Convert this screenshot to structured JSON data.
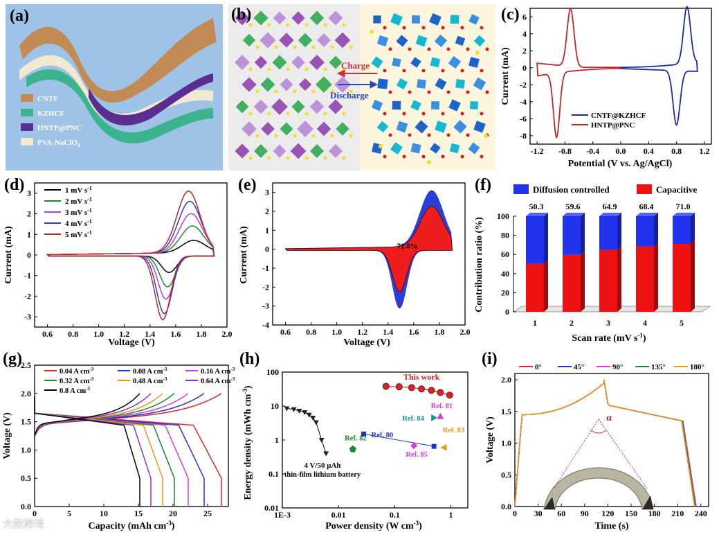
{
  "panels": {
    "a": {
      "label": "(a)",
      "layers": [
        "CNTF",
        "KZHCF",
        "HNTP@PNC",
        "PVA-NaClO",
        "4"
      ],
      "colors": {
        "bg": "#9ec3e6",
        "cntf": "#c28a55",
        "kzhcf": "#3bb48e",
        "hntp": "#5a2d91",
        "pva": "#f1ead0"
      }
    },
    "b": {
      "label": "(b)",
      "charge_label": "Charge",
      "discharge_label": "Discharge",
      "colors": {
        "charge": "#d12f2f",
        "discharge": "#2a44b8"
      }
    },
    "c": {
      "label": "(c)",
      "xlabel": "Potential (V vs. Ag/AgCl)",
      "ylabel": "Current (mA)",
      "xticks": [
        "-1.2",
        "-0.8",
        "-0.4",
        "0.0",
        "0.4",
        "0.8",
        "1.2"
      ],
      "yticks": [
        "-8",
        "-6",
        "-4",
        "-2",
        "0",
        "2",
        "4",
        "6"
      ],
      "legend": [
        "CNTF@KZHCF",
        "HNTP@PNC"
      ],
      "colors": [
        "#1f2a9e",
        "#c0262a"
      ]
    },
    "d": {
      "label": "(d)",
      "xlabel": "Voltage (V)",
      "ylabel": "Current (mA)",
      "xticks": [
        "0.6",
        "0.8",
        "1.0",
        "1.2",
        "1.4",
        "1.6",
        "1.8",
        "2.0"
      ],
      "yticks": [
        "-3",
        "-2",
        "-1",
        "0",
        "1",
        "2",
        "3"
      ],
      "legend": [
        "1 mV s",
        "2 mV s",
        "3 mV s",
        "4 mV s",
        "5 mV s"
      ],
      "legend_sup": "-1",
      "colors": [
        "#000000",
        "#1a8a2a",
        "#c23bd3",
        "#2e3fbf",
        "#c0262a"
      ]
    },
    "e": {
      "label": "(e)",
      "xlabel": "Voltage (V)",
      "ylabel": "Current (mA)",
      "xticks": [
        "0.6",
        "0.8",
        "1.0",
        "1.2",
        "1.4",
        "1.6",
        "1.8",
        "2.0"
      ],
      "yticks": [
        "-4",
        "-3",
        "-2",
        "-1",
        "0",
        "1",
        "2",
        "3"
      ],
      "annotation": "71.0%",
      "colors": {
        "total": "#2b3fd4",
        "capacitive": "#ee1c1c"
      }
    },
    "f": {
      "label": "(f)",
      "xlabel": "Scan rate (mV s",
      "xlabel_sup": "-1",
      "xlabel_end": ")",
      "ylabel": "Contribution ratio (%)",
      "legend": [
        "Diffusion controlled",
        "Capacitive"
      ],
      "yticks": [
        "0",
        "20",
        "40",
        "60",
        "80",
        "100"
      ],
      "colors": {
        "diffusion": "#2233ee",
        "capacitive": "#ee1111"
      }
    },
    "g": {
      "label": "(g)",
      "xlabel": "Capacity (mAh cm",
      "xlabel_sup": "-3",
      "xlabel_end": ")",
      "ylabel": "Voltage (V)",
      "xticks": [
        "0",
        "5",
        "10",
        "15",
        "20",
        "25"
      ],
      "yticks": [
        "0.0",
        "0.5",
        "1.0",
        "1.5",
        "2.0",
        "2.5"
      ],
      "legend": [
        "0.04 A cm",
        "0.08 A cm",
        "0.16 A cm",
        "0.32 A cm",
        "0.48 A cm",
        "0.64 A cm",
        "0.8 A cm"
      ],
      "legend_sup": "-3",
      "colors": [
        "#d7262b",
        "#2233c4",
        "#d23bd8",
        "#1a8a2a",
        "#f0941f",
        "#8a32c8",
        "#000000"
      ],
      "capacities": [
        27,
        24.5,
        22.2,
        20.2,
        18.5,
        16.8,
        15.2
      ]
    },
    "h": {
      "label": "(h)",
      "xlabel": "Power density (W cm",
      "xlabel_sup": "-3",
      "xlabel_end": ")",
      "ylabel": "Energy density (mWh cm",
      "ylabel_sup": "-3",
      "ylabel_end": ")",
      "xticks": [
        "1E-3",
        "0.01",
        "0.1",
        "1"
      ],
      "yticks": [
        "0.01",
        "0.1",
        "1",
        "10",
        "100"
      ],
      "this_work": "This work",
      "battery_line1": "4 V/50 μAh",
      "battery_line2": "thin-film lithium battery",
      "refs": [
        "Ref. 80",
        "Ref. 81",
        "Ref. 82",
        "Ref. 83",
        "Ref. 84",
        "Ref. 85"
      ]
    },
    "i": {
      "label": "(i)",
      "xlabel": "Time (s)",
      "ylabel": "Voltage (V)",
      "xticks": [
        "0",
        "30",
        "60",
        "90",
        "120",
        "150",
        "180",
        "210",
        "240"
      ],
      "yticks": [
        "0.0",
        "0.5",
        "1.0",
        "1.5",
        "2.0"
      ],
      "legend": [
        "0°",
        "45°",
        "90°",
        "135°",
        "180°"
      ],
      "colors": [
        "#d7262b",
        "#2233c4",
        "#d23bd8",
        "#1a8a2a",
        "#f0941f"
      ],
      "angle_label": "α"
    }
  },
  "chart_data": [
    {
      "panel": "c",
      "type": "line",
      "title": "",
      "xlabel": "Potential (V vs. Ag/AgCl)",
      "ylabel": "Current (mA)",
      "xlim": [
        -1.3,
        1.3
      ],
      "ylim": [
        -9,
        7
      ],
      "series": [
        {
          "name": "CNTF@KZHCF",
          "peaks": {
            "anodic": {
              "x": 0.95,
              "y": 6.7
            },
            "cathodic": {
              "x": 0.8,
              "y": -6.4
            }
          },
          "range": [
            0.0,
            1.1
          ]
        },
        {
          "name": "HNTP@PNC",
          "peaks": {
            "anodic": {
              "x": -0.72,
              "y": 6.8
            },
            "cathodic": {
              "x": -0.92,
              "y": -7.6
            }
          },
          "range": [
            -1.2,
            0.0
          ]
        }
      ]
    },
    {
      "panel": "d",
      "type": "line",
      "xlabel": "Voltage (V)",
      "ylabel": "Current (mA)",
      "xlim": [
        0.5,
        2.0
      ],
      "ylim": [
        -3.5,
        3.5
      ],
      "series": [
        {
          "name": "1 mV s-1",
          "anodic_peak": 0.6,
          "cathodic_peak": -0.8
        },
        {
          "name": "2 mV s-1",
          "anodic_peak": 1.3,
          "cathodic_peak": -1.5
        },
        {
          "name": "3 mV s-1",
          "anodic_peak": 1.9,
          "cathodic_peak": -2.1
        },
        {
          "name": "4 mV s-1",
          "anodic_peak": 2.5,
          "cathodic_peak": -2.8
        },
        {
          "name": "5 mV s-1",
          "anodic_peak": 3.0,
          "cathodic_peak": -3.1
        }
      ]
    },
    {
      "panel": "e",
      "type": "area",
      "xlabel": "Voltage (V)",
      "ylabel": "Current (mA)",
      "xlim": [
        0.5,
        2.0
      ],
      "ylim": [
        -4,
        3.5
      ],
      "capacitive_fraction": "71.0%"
    },
    {
      "panel": "f",
      "type": "bar",
      "categories": [
        "1",
        "2",
        "3",
        "4",
        "5"
      ],
      "series": [
        {
          "name": "Capacitive",
          "values": [
            50.3,
            59.6,
            64.9,
            68.4,
            71.0
          ]
        },
        {
          "name": "Diffusion controlled",
          "values": [
            49.7,
            40.4,
            35.1,
            31.6,
            29.0
          ]
        }
      ],
      "data_labels": [
        "50.3",
        "59.6",
        "64.9",
        "68.4",
        "71.0"
      ],
      "xlabel": "Scan rate (mV s-1)",
      "ylabel": "Contribution ratio (%)",
      "ylim": [
        0,
        100
      ]
    },
    {
      "panel": "g",
      "type": "line",
      "xlabel": "Capacity (mAh cm-3)",
      "ylabel": "Voltage (V)",
      "xlim": [
        0,
        28
      ],
      "ylim": [
        0,
        2.5
      ],
      "series": [
        {
          "name": "0.04 A cm-3",
          "capacity": 27.0
        },
        {
          "name": "0.08 A cm-3",
          "capacity": 24.5
        },
        {
          "name": "0.16 A cm-3",
          "capacity": 22.2
        },
        {
          "name": "0.32 A cm-3",
          "capacity": 20.2
        },
        {
          "name": "0.48 A cm-3",
          "capacity": 18.5
        },
        {
          "name": "0.64 A cm-3",
          "capacity": 16.8
        },
        {
          "name": "0.8 A cm-3",
          "capacity": 15.2
        }
      ]
    },
    {
      "panel": "h",
      "type": "scatter",
      "xlabel": "Power density (W cm-3)",
      "ylabel": "Energy density (mWh cm-3)",
      "xscale": "log",
      "yscale": "log",
      "xlim": [
        0.001,
        2
      ],
      "ylim": [
        0.01,
        100
      ],
      "series": [
        {
          "name": "This work",
          "x": [
            0.07,
            0.12,
            0.2,
            0.3,
            0.45,
            0.65,
            0.95
          ],
          "y": [
            38,
            37,
            35,
            32,
            29,
            25,
            21
          ]
        },
        {
          "name": "4 V/50 μAh thin-film lithium battery",
          "x": [
            0.0012,
            0.0016,
            0.002,
            0.0025,
            0.003,
            0.0035,
            0.004,
            0.005,
            0.006
          ],
          "y": [
            8.5,
            8,
            7.2,
            6.5,
            5.5,
            4.5,
            3.3,
            1.0,
            0.4
          ]
        },
        {
          "name": "Ref. 80",
          "x": [
            0.028,
            0.5
          ],
          "y": [
            1.5,
            0.65
          ]
        },
        {
          "name": "Ref. 81",
          "x": [
            0.65
          ],
          "y": [
            5.0
          ]
        },
        {
          "name": "Ref. 82",
          "x": [
            0.018
          ],
          "y": [
            0.55
          ]
        },
        {
          "name": "Ref. 83",
          "x": [
            0.75
          ],
          "y": [
            0.6
          ]
        },
        {
          "name": "Ref. 84",
          "x": [
            0.5
          ],
          "y": [
            4.5
          ]
        },
        {
          "name": "Ref. 85",
          "x": [
            0.22
          ],
          "y": [
            0.68
          ]
        }
      ]
    },
    {
      "panel": "i",
      "type": "line",
      "xlabel": "Time (s)",
      "ylabel": "Voltage (V)",
      "xlim": [
        0,
        250
      ],
      "ylim": [
        0,
        2.1
      ],
      "series": [
        {
          "name": "0°",
          "charge_end": 115,
          "discharge_end": 232
        },
        {
          "name": "45°",
          "charge_end": 115,
          "discharge_end": 233
        },
        {
          "name": "90°",
          "charge_end": 115,
          "discharge_end": 234
        },
        {
          "name": "135°",
          "charge_end": 115,
          "discharge_end": 233
        },
        {
          "name": "180°",
          "charge_end": 115,
          "discharge_end": 232
        }
      ]
    }
  ],
  "watermark": "大数跨境"
}
